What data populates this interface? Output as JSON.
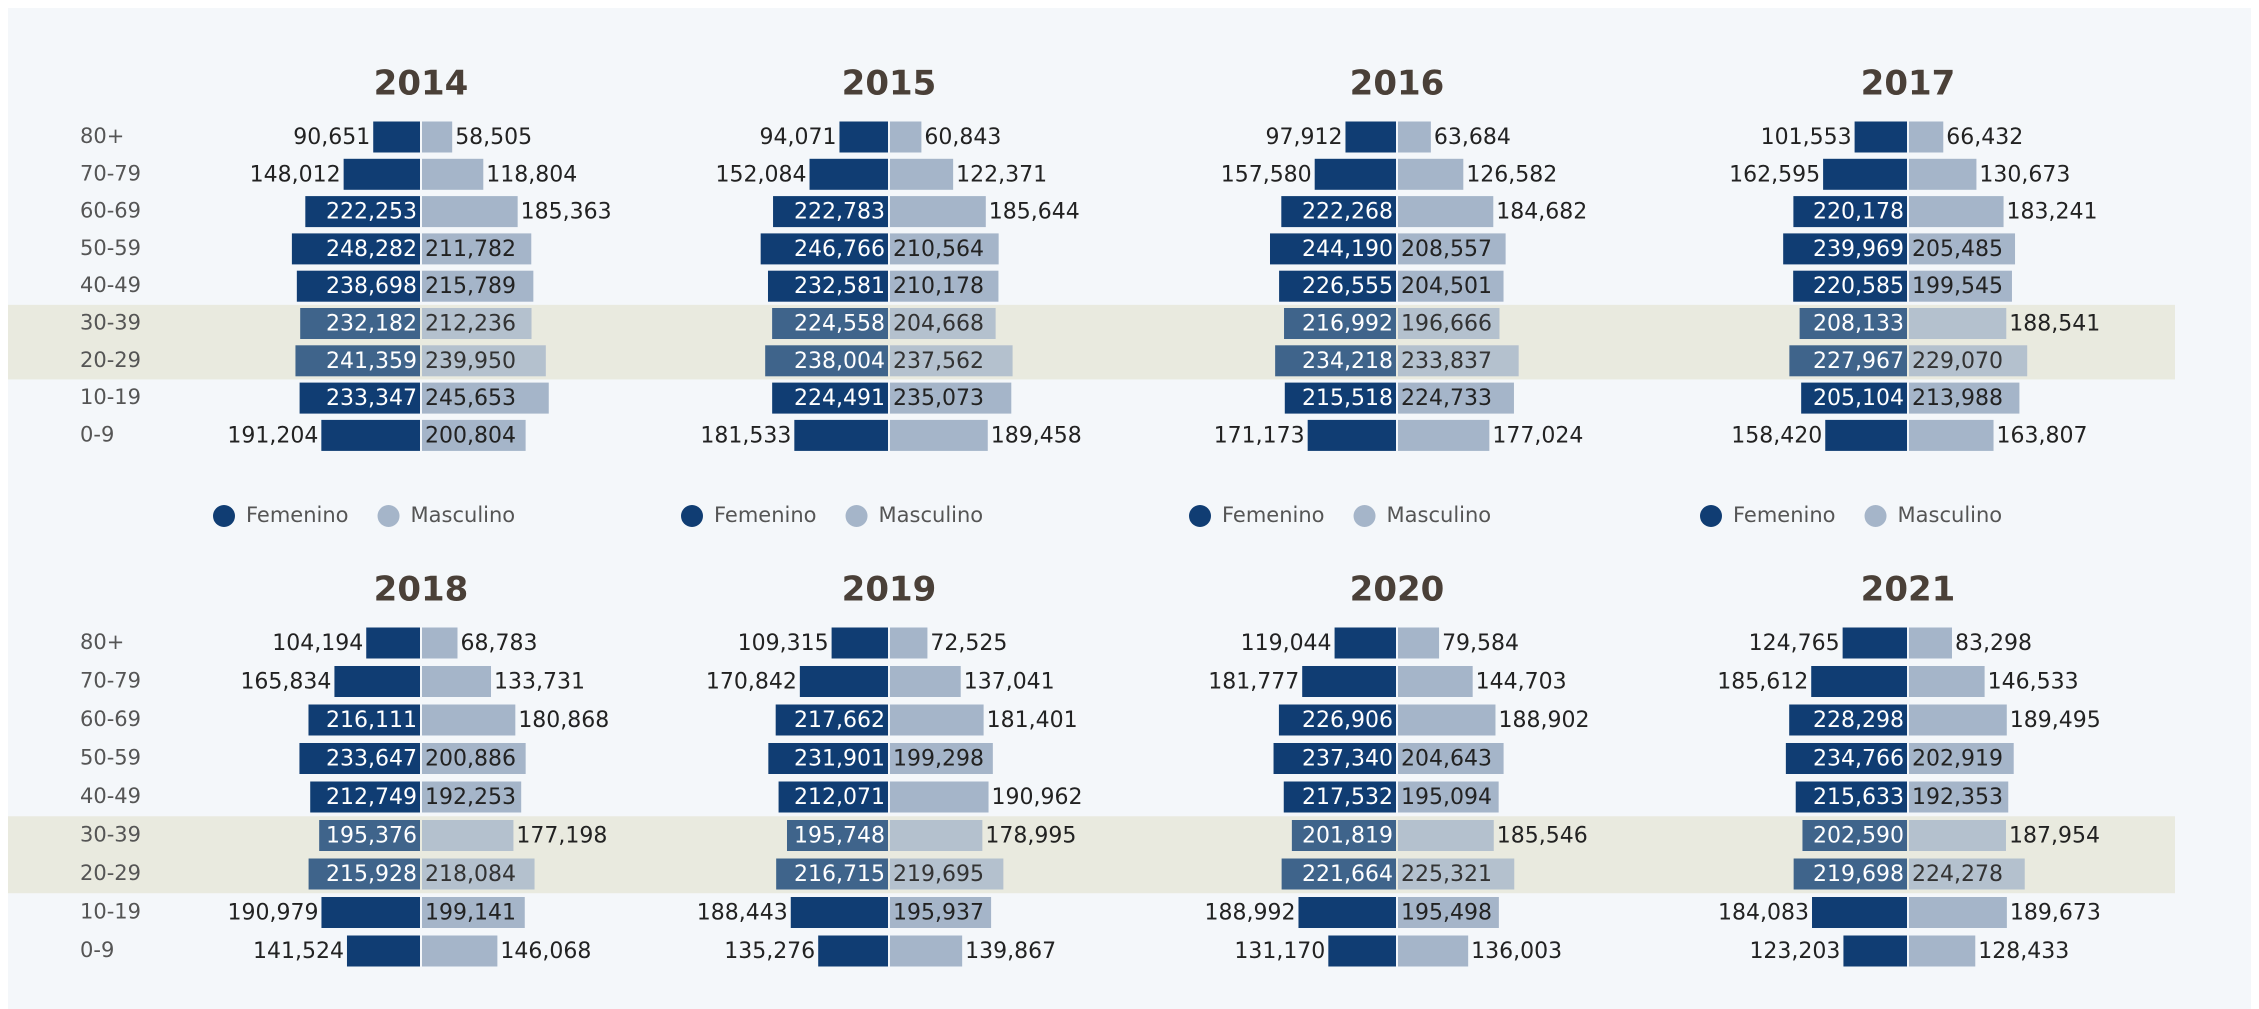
{
  "chart_data": [
    {
      "type": "bar",
      "title": "2014",
      "categories": [
        "80+",
        "70-79",
        "60-69",
        "50-59",
        "40-49",
        "30-39",
        "20-29",
        "10-19",
        "0-9"
      ],
      "series": [
        {
          "name": "Femenino",
          "color": "#103d73",
          "values": [
            90651,
            148012,
            222253,
            248282,
            238698,
            232182,
            241359,
            233347,
            191204
          ],
          "value_labels": [
            "90,651",
            "148,012",
            "222,253",
            "248,282",
            "238,698",
            "232,182",
            "241,359",
            "233,347",
            "191,204"
          ]
        },
        {
          "name": "Masculino",
          "color": "#a5b5c9",
          "values": [
            58505,
            118804,
            185363,
            211782,
            215789,
            212236,
            239950,
            245653,
            200804
          ],
          "value_labels": [
            "58,505",
            "118,804",
            "185,363",
            "211,782",
            "215,789",
            "212,236",
            "239,950",
            "245,653",
            "200,804"
          ]
        }
      ]
    },
    {
      "type": "bar",
      "title": "2015",
      "categories": [
        "80+",
        "70-79",
        "60-69",
        "50-59",
        "40-49",
        "30-39",
        "20-29",
        "10-19",
        "0-9"
      ],
      "series": [
        {
          "name": "Femenino",
          "color": "#103d73",
          "values": [
            94071,
            152084,
            222783,
            246766,
            232581,
            224558,
            238004,
            224491,
            181533
          ],
          "value_labels": [
            "94,071",
            "152,084",
            "222,783",
            "246,766",
            "232,581",
            "224,558",
            "238,004",
            "224,491",
            "181,533"
          ]
        },
        {
          "name": "Masculino",
          "color": "#a5b5c9",
          "values": [
            60843,
            122371,
            185644,
            210564,
            210178,
            204668,
            237562,
            235073,
            189458
          ],
          "value_labels": [
            "60,843",
            "122,371",
            "185,644",
            "210,564",
            "210,178",
            "204,668",
            "237,562",
            "235,073",
            "189,458"
          ]
        }
      ]
    },
    {
      "type": "bar",
      "title": "2016",
      "categories": [
        "80+",
        "70-79",
        "60-69",
        "50-59",
        "40-49",
        "30-39",
        "20-29",
        "10-19",
        "0-9"
      ],
      "series": [
        {
          "name": "Femenino",
          "color": "#103d73",
          "values": [
            97912,
            157580,
            222268,
            244190,
            226555,
            216992,
            234218,
            215518,
            171173
          ],
          "value_labels": [
            "97,912",
            "157,580",
            "222,268",
            "244,190",
            "226,555",
            "216,992",
            "234,218",
            "215,518",
            "171,173"
          ]
        },
        {
          "name": "Masculino",
          "color": "#a5b5c9",
          "values": [
            63684,
            126582,
            184682,
            208557,
            204501,
            196666,
            233837,
            224733,
            177024
          ],
          "value_labels": [
            "63,684",
            "126,582",
            "184,682",
            "208,557",
            "204,501",
            "196,666",
            "233,837",
            "224,733",
            "177,024"
          ]
        }
      ]
    },
    {
      "type": "bar",
      "title": "2017",
      "categories": [
        "80+",
        "70-79",
        "60-69",
        "50-59",
        "40-49",
        "30-39",
        "20-29",
        "10-19",
        "0-9"
      ],
      "series": [
        {
          "name": "Femenino",
          "color": "#103d73",
          "values": [
            101553,
            162595,
            220178,
            239969,
            220585,
            208133,
            227967,
            205104,
            158420
          ],
          "value_labels": [
            "101,553",
            "162,595",
            "220,178",
            "239,969",
            "220,585",
            "208,133",
            "227,967",
            "205,104",
            "158,420"
          ]
        },
        {
          "name": "Masculino",
          "color": "#a5b5c9",
          "values": [
            66432,
            130673,
            183241,
            205485,
            199545,
            188541,
            229070,
            213988,
            163807
          ],
          "value_labels": [
            "66,432",
            "130,673",
            "183,241",
            "205,485",
            "199,545",
            "188,541",
            "229,070",
            "213,988",
            "163,807"
          ]
        }
      ]
    },
    {
      "type": "bar",
      "title": "2018",
      "categories": [
        "80+",
        "70-79",
        "60-69",
        "50-59",
        "40-49",
        "30-39",
        "20-29",
        "10-19",
        "0-9"
      ],
      "series": [
        {
          "name": "Femenino",
          "color": "#103d73",
          "values": [
            104194,
            165834,
            216111,
            233647,
            212749,
            195376,
            215928,
            190979,
            141524
          ],
          "value_labels": [
            "104,194",
            "165,834",
            "216,111",
            "233,647",
            "212,749",
            "195,376",
            "215,928",
            "190,979",
            "141,524"
          ]
        },
        {
          "name": "Masculino",
          "color": "#a5b5c9",
          "values": [
            68783,
            133731,
            180868,
            200886,
            192253,
            177198,
            218084,
            199141,
            146068
          ],
          "value_labels": [
            "68,783",
            "133,731",
            "180,868",
            "200,886",
            "192,253",
            "177,198",
            "218,084",
            "199,141",
            "146,068"
          ]
        }
      ]
    },
    {
      "type": "bar",
      "title": "2019",
      "categories": [
        "80+",
        "70-79",
        "60-69",
        "50-59",
        "40-49",
        "30-39",
        "20-29",
        "10-19",
        "0-9"
      ],
      "series": [
        {
          "name": "Femenino",
          "color": "#103d73",
          "values": [
            109315,
            170842,
            217662,
            231901,
            212071,
            195748,
            216715,
            188443,
            135276
          ],
          "value_labels": [
            "109,315",
            "170,842",
            "217,662",
            "231,901",
            "212,071",
            "195,748",
            "216,715",
            "188,443",
            "135,276"
          ]
        },
        {
          "name": "Masculino",
          "color": "#a5b5c9",
          "values": [
            72525,
            137041,
            181401,
            199298,
            190962,
            178995,
            219695,
            195937,
            139867
          ],
          "value_labels": [
            "72,525",
            "137,041",
            "181,401",
            "199,298",
            "190,962",
            "178,995",
            "219,695",
            "195,937",
            "139,867"
          ]
        }
      ]
    },
    {
      "type": "bar",
      "title": "2020",
      "categories": [
        "80+",
        "70-79",
        "60-69",
        "50-59",
        "40-49",
        "30-39",
        "20-29",
        "10-19",
        "0-9"
      ],
      "series": [
        {
          "name": "Femenino",
          "color": "#103d73",
          "values": [
            119044,
            181777,
            226906,
            237340,
            217532,
            201819,
            221664,
            188992,
            131170
          ],
          "value_labels": [
            "119,044",
            "181,777",
            "226,906",
            "237,340",
            "217,532",
            "201,819",
            "221,664",
            "188,992",
            "131,170"
          ]
        },
        {
          "name": "Masculino",
          "color": "#a5b5c9",
          "values": [
            79584,
            144703,
            188902,
            204643,
            195094,
            185546,
            225321,
            195498,
            136003
          ],
          "value_labels": [
            "79,584",
            "144,703",
            "188,902",
            "204,643",
            "195,094",
            "185,546",
            "225,321",
            "195,498",
            "136,003"
          ]
        }
      ]
    },
    {
      "type": "bar",
      "title": "2021",
      "categories": [
        "80+",
        "70-79",
        "60-69",
        "50-59",
        "40-49",
        "30-39",
        "20-29",
        "10-19",
        "0-9"
      ],
      "series": [
        {
          "name": "Femenino",
          "color": "#103d73",
          "values": [
            124765,
            185612,
            228298,
            234766,
            215633,
            202590,
            219698,
            184083,
            123203
          ],
          "value_labels": [
            "124,765",
            "185,612",
            "228,298",
            "234,766",
            "215,633",
            "202,590",
            "219,698",
            "184,083",
            "123,203"
          ]
        },
        {
          "name": "Masculino",
          "color": "#a5b5c9",
          "values": [
            83298,
            146533,
            189495,
            202919,
            192353,
            187954,
            224278,
            189673,
            128433
          ],
          "value_labels": [
            "83,298",
            "146,533",
            "189,495",
            "202,919",
            "192,353",
            "187,954",
            "224,278",
            "189,673",
            "128,433"
          ]
        }
      ]
    }
  ]
}
